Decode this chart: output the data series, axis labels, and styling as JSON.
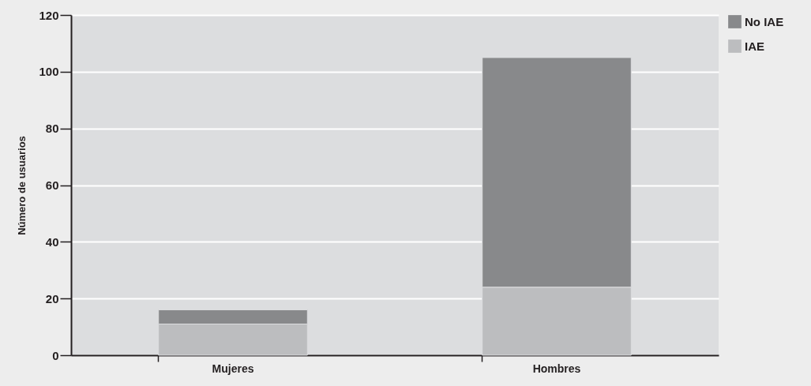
{
  "chart_data": {
    "type": "bar",
    "ylabel": "Número de usuarios",
    "categories": [
      "Mujeres",
      "Hombres"
    ],
    "stacked": true,
    "series": [
      {
        "name": "IAE",
        "color": "#bcbdbf",
        "values": [
          11,
          24
        ]
      },
      {
        "name": "No IAE",
        "color": "#88898b",
        "values": [
          5,
          81
        ]
      }
    ],
    "ylim": [
      0,
      120
    ],
    "yticks": [
      0,
      20,
      40,
      60,
      80,
      100,
      120
    ],
    "grid": "y",
    "legend": "right"
  }
}
